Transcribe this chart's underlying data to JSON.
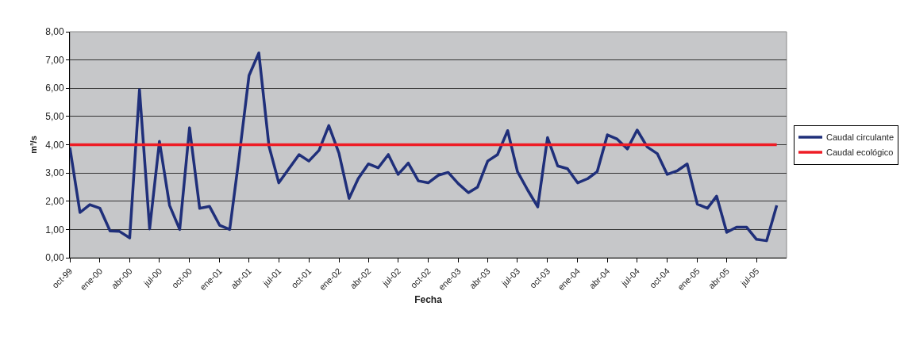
{
  "chart_data": {
    "type": "line",
    "xlabel": "Fecha",
    "ylabel": "m³/s",
    "x": [
      "1999-10",
      "1999-11",
      "1999-12",
      "2000-01",
      "2000-02",
      "2000-03",
      "2000-04",
      "2000-05",
      "2000-06",
      "2000-07",
      "2000-08",
      "2000-09",
      "2000-10",
      "2000-11",
      "2000-12",
      "2001-01",
      "2001-02",
      "2001-03",
      "2001-04",
      "2001-05",
      "2001-06",
      "2001-07",
      "2001-08",
      "2001-09",
      "2001-10",
      "2001-11",
      "2001-12",
      "2002-01",
      "2002-02",
      "2002-03",
      "2002-04",
      "2002-05",
      "2002-06",
      "2002-07",
      "2002-08",
      "2002-09",
      "2002-10",
      "2002-11",
      "2002-12",
      "2003-01",
      "2003-02",
      "2003-03",
      "2003-04",
      "2003-05",
      "2003-06",
      "2003-07",
      "2003-08",
      "2003-09",
      "2003-10",
      "2003-11",
      "2003-12",
      "2004-01",
      "2004-02",
      "2004-03",
      "2004-04",
      "2004-05",
      "2004-06",
      "2004-07",
      "2004-08",
      "2004-09",
      "2004-10",
      "2004-11",
      "2004-12",
      "2005-01",
      "2005-02",
      "2005-03",
      "2005-04",
      "2005-05",
      "2005-06",
      "2005-07",
      "2005-08",
      "2005-09"
    ],
    "series": [
      {
        "name": "Caudal circulante",
        "color": "#1f2f7a",
        "values": [
          3.9,
          1.6,
          1.88,
          1.75,
          0.95,
          0.93,
          0.7,
          5.95,
          1.02,
          4.12,
          1.85,
          1.0,
          4.6,
          1.75,
          1.82,
          1.15,
          1.0,
          3.5,
          6.45,
          7.25,
          3.95,
          2.65,
          3.15,
          3.65,
          3.42,
          3.8,
          4.68,
          3.7,
          2.1,
          2.8,
          3.32,
          3.18,
          3.65,
          2.95,
          3.35,
          2.72,
          2.65,
          2.92,
          3.02,
          2.62,
          2.3,
          2.5,
          3.42,
          3.65,
          4.5,
          3.05,
          2.4,
          1.8,
          4.25,
          3.25,
          3.15,
          2.65,
          2.8,
          3.05,
          4.35,
          4.2,
          3.85,
          4.52,
          3.92,
          3.68,
          2.95,
          3.08,
          3.32,
          1.9,
          1.75,
          2.18,
          0.9,
          1.08,
          1.08,
          0.65,
          0.6,
          1.85
        ]
      },
      {
        "name": "Caudal ecológico",
        "color": "#ee1c25",
        "x": [
          "1999-10",
          "2005-09"
        ],
        "values": [
          4,
          4
        ]
      }
    ],
    "xlim": [
      "1999-10",
      "2005-10"
    ],
    "xticks": [
      {
        "value": "1999-10",
        "label": "oct-99"
      },
      {
        "value": "2000-01",
        "label": "ene-00"
      },
      {
        "value": "2000-04",
        "label": "abr-00"
      },
      {
        "value": "2000-07",
        "label": "jul-00"
      },
      {
        "value": "2000-10",
        "label": "oct-00"
      },
      {
        "value": "2001-01",
        "label": "ene-01"
      },
      {
        "value": "2001-04",
        "label": "abr-01"
      },
      {
        "value": "2001-07",
        "label": "jul-01"
      },
      {
        "value": "2001-10",
        "label": "oct-01"
      },
      {
        "value": "2002-01",
        "label": "ene-02"
      },
      {
        "value": "2002-04",
        "label": "abr-02"
      },
      {
        "value": "2002-07",
        "label": "jul-02"
      },
      {
        "value": "2002-10",
        "label": "oct-02"
      },
      {
        "value": "2003-01",
        "label": "ene-03"
      },
      {
        "value": "2003-04",
        "label": "abr-03"
      },
      {
        "value": "2003-07",
        "label": "jul-03"
      },
      {
        "value": "2003-10",
        "label": "oct-03"
      },
      {
        "value": "2004-01",
        "label": "ene-04"
      },
      {
        "value": "2004-04",
        "label": "abr-04"
      },
      {
        "value": "2004-07",
        "label": "jul-04"
      },
      {
        "value": "2004-10",
        "label": "oct-04"
      },
      {
        "value": "2005-01",
        "label": "ene-05"
      },
      {
        "value": "2005-04",
        "label": "abr-05"
      },
      {
        "value": "2005-07",
        "label": "jul-05"
      }
    ],
    "ylim": [
      0,
      8
    ],
    "yticks": [
      {
        "value": 0,
        "label": "0,00"
      },
      {
        "value": 1,
        "label": "1,00"
      },
      {
        "value": 2,
        "label": "2,00"
      },
      {
        "value": 3,
        "label": "3,00"
      },
      {
        "value": 4,
        "label": "4,00"
      },
      {
        "value": 5,
        "label": "5,00"
      },
      {
        "value": 6,
        "label": "6,00"
      },
      {
        "value": 7,
        "label": "7,00"
      },
      {
        "value": 8,
        "label": "8,00"
      }
    ],
    "grid": "y",
    "legend": "right",
    "marker": "none",
    "line_style": "solid"
  }
}
